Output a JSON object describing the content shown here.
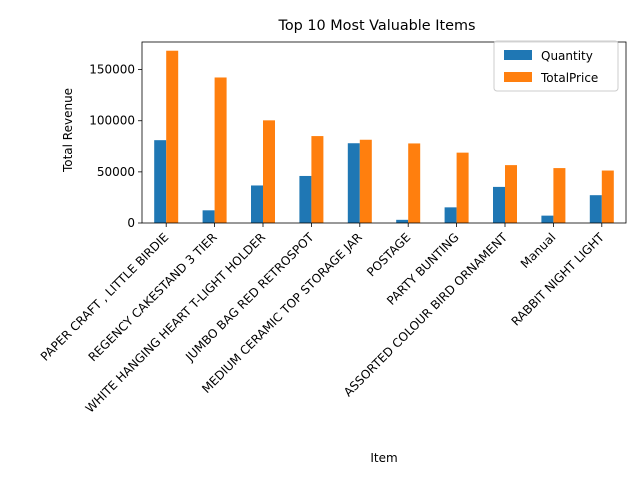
{
  "chart_data": {
    "type": "bar",
    "title": "Top 10 Most Valuable Items",
    "xlabel": "Item",
    "ylabel": "Total Revenue",
    "categories": [
      "PAPER CRAFT , LITTLE BIRDIE",
      "REGENCY CAKESTAND 3 TIER",
      "WHITE HANGING HEART T-LIGHT HOLDER",
      "JUMBO BAG RED RETROSPOT",
      "MEDIUM CERAMIC TOP STORAGE JAR",
      "POSTAGE",
      "PARTY BUNTING",
      "ASSORTED COLOUR BIRD ORNAMENT",
      "Manual",
      "RABBIT NIGHT LIGHT"
    ],
    "series": [
      {
        "name": "Quantity",
        "color": "#1f77b4",
        "values": [
          80995,
          12400,
          36700,
          46000,
          78000,
          3100,
          15300,
          35300,
          7200,
          27200
        ]
      },
      {
        "name": "TotalPrice",
        "color": "#ff7f0e",
        "values": [
          168470,
          142300,
          100400,
          85000,
          81400,
          77800,
          68800,
          56600,
          53700,
          51300
        ]
      }
    ],
    "ylim": [
      0,
      177000
    ],
    "yticks": [
      0,
      50000,
      100000,
      150000
    ],
    "ytick_labels": [
      "0",
      "50000",
      "100000",
      "150000"
    ],
    "grid": false,
    "legend_position": "upper right"
  }
}
